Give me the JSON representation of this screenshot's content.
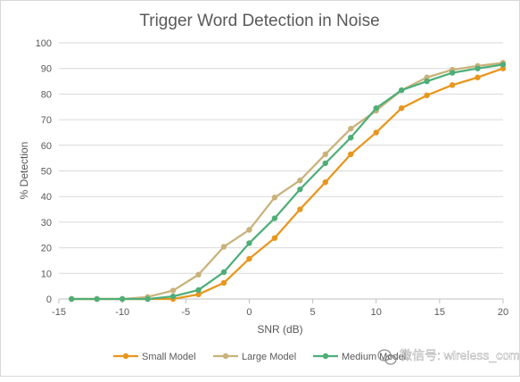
{
  "chart_data": {
    "type": "line",
    "title": "Trigger Word Detection in Noise",
    "xlabel": "SNR (dB)",
    "ylabel": "% Detection",
    "xlim": [
      -15,
      20
    ],
    "ylim": [
      0,
      100
    ],
    "x_ticks": [
      -15,
      -10,
      -5,
      0,
      5,
      10,
      15,
      20
    ],
    "y_ticks": [
      0,
      10,
      20,
      30,
      40,
      50,
      60,
      70,
      80,
      90,
      100
    ],
    "grid": "horizontal",
    "legend_position": "bottom",
    "series": [
      {
        "name": "Small Model",
        "color": "#e8961e",
        "x": [
          -14,
          -12,
          -10,
          -8,
          -6,
          -4,
          -2,
          0,
          2,
          4,
          6,
          8,
          10,
          12,
          14,
          16,
          18,
          20
        ],
        "y": [
          0,
          0,
          0,
          0,
          0,
          1.8,
          6.3,
          15.7,
          23.8,
          35,
          45.6,
          56.5,
          65,
          74.5,
          79.5,
          83.5,
          86.5,
          90
        ]
      },
      {
        "name": "Large Model",
        "color": "#c9b27a",
        "x": [
          -14,
          -12,
          -10,
          -8,
          -6,
          -4,
          -2,
          0,
          2,
          4,
          6,
          8,
          10,
          12,
          14,
          16,
          18,
          20
        ],
        "y": [
          0,
          0,
          0,
          0.8,
          3.3,
          9.5,
          20.4,
          27,
          39.6,
          46.3,
          56.5,
          66.5,
          73.5,
          81.5,
          86.5,
          89.5,
          91,
          92.2
        ]
      },
      {
        "name": "Medium Model",
        "color": "#4fae78",
        "x": [
          -14,
          -12,
          -10,
          -8,
          -6,
          -4,
          -2,
          0,
          2,
          4,
          6,
          8,
          10,
          12,
          14,
          16,
          18,
          20
        ],
        "y": [
          0,
          0,
          0,
          0,
          1,
          3.5,
          10.5,
          21.8,
          31.5,
          42.8,
          53,
          63,
          74.5,
          81.5,
          85,
          88.3,
          90,
          91.5
        ]
      }
    ]
  },
  "watermark": {
    "icon": "wechat-icon",
    "text": "微信号: wireless_com"
  }
}
